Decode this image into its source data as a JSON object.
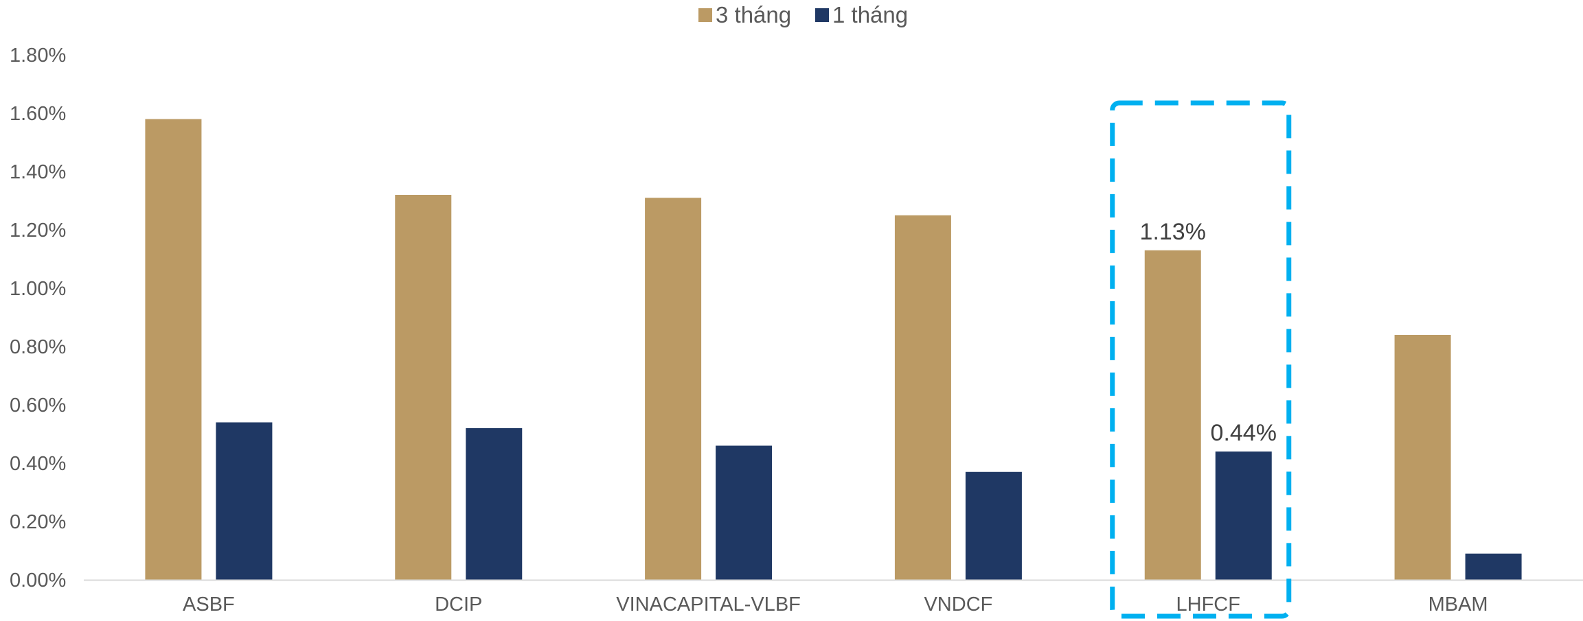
{
  "chart_data": {
    "type": "bar",
    "categories": [
      "ASBF",
      "DCIP",
      "VINACAPITAL-VLBF",
      "VNDCF",
      "LHFCF",
      "MBAM"
    ],
    "series": [
      {
        "name": "3 tháng",
        "color": "#BB9A64",
        "values": [
          1.58,
          1.32,
          1.31,
          1.25,
          1.13,
          0.84
        ]
      },
      {
        "name": "1 tháng",
        "color": "#1F3864",
        "values": [
          0.54,
          0.52,
          0.46,
          0.37,
          0.44,
          0.09
        ]
      }
    ],
    "ylim": [
      0,
      1.8
    ],
    "yticks": [
      "0.00%",
      "0.20%",
      "0.40%",
      "0.60%",
      "0.80%",
      "1.00%",
      "1.20%",
      "1.40%",
      "1.60%",
      "1.80%"
    ],
    "ytick_values": [
      0,
      0.2,
      0.4,
      0.6,
      0.8,
      1.0,
      1.2,
      1.4,
      1.6,
      1.8
    ],
    "data_labels": [
      {
        "series": 0,
        "category": 4,
        "text": "1.13%"
      },
      {
        "series": 1,
        "category": 4,
        "text": "0.44%"
      }
    ],
    "highlight": {
      "category": "LHFCF",
      "style": "dashed box",
      "color": "#00B0F0"
    },
    "legend_position": "top",
    "grid": false
  }
}
